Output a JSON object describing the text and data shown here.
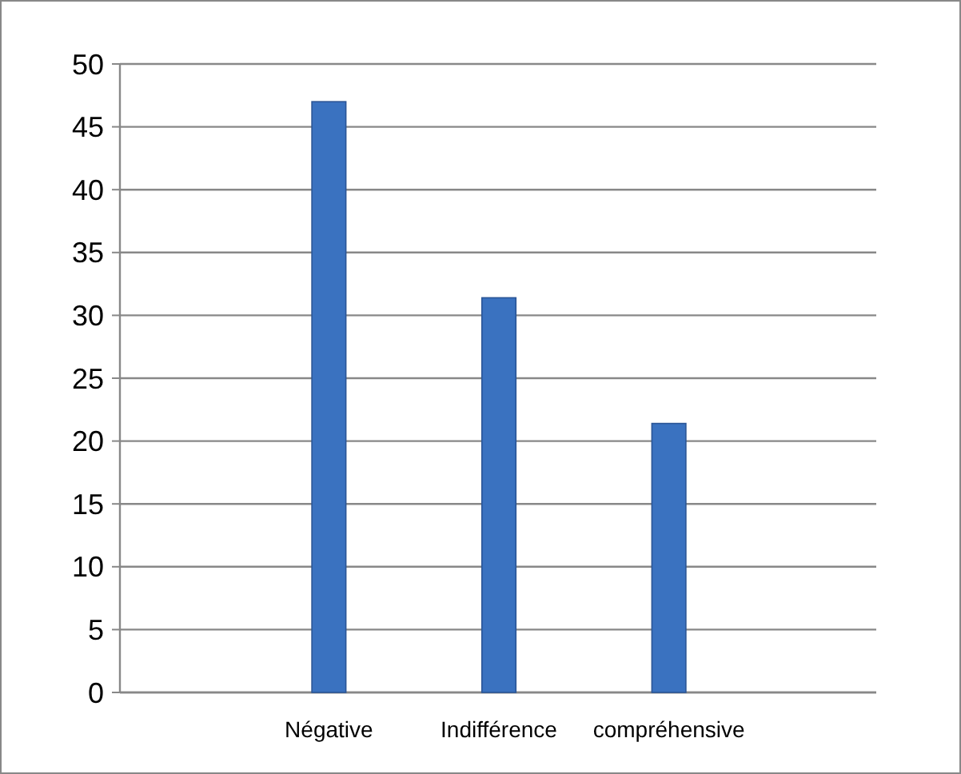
{
  "chart_data": {
    "type": "bar",
    "categories": [
      "Négative",
      "Indifférence",
      "compréhensive"
    ],
    "values": [
      47,
      31.4,
      21.4
    ],
    "color": "#3a72c0",
    "ylim": [
      0,
      50
    ],
    "yticks": [
      0,
      5,
      10,
      15,
      20,
      25,
      30,
      35,
      40,
      45,
      50
    ],
    "grid": "y"
  }
}
